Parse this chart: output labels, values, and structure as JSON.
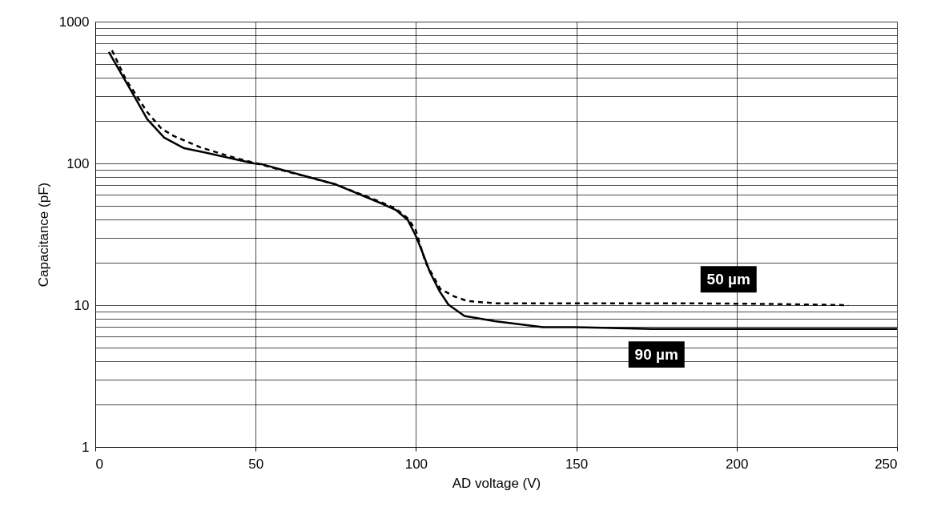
{
  "chart_data": {
    "type": "line",
    "xlabel": "AD voltage (V)",
    "ylabel": "Capacitance (pF)",
    "log": "y",
    "grid": true,
    "legend": false,
    "marker": "none",
    "xlim": [
      0,
      250
    ],
    "xticks": [
      0,
      50,
      100,
      150,
      200,
      250
    ],
    "ylim": [
      1,
      1000
    ],
    "yticks": [
      1,
      {
        "value": 2,
        "label": null
      },
      {
        "value": 3,
        "label": null
      },
      {
        "value": 4,
        "label": null
      },
      {
        "value": 5,
        "label": null
      },
      {
        "value": 6,
        "label": null
      },
      {
        "value": 7,
        "label": null
      },
      {
        "value": 8,
        "label": null
      },
      {
        "value": 9,
        "label": null
      },
      10,
      {
        "value": 20,
        "label": null
      },
      {
        "value": 30,
        "label": null
      },
      {
        "value": 40,
        "label": null
      },
      {
        "value": 50,
        "label": null
      },
      {
        "value": 60,
        "label": null
      },
      {
        "value": 70,
        "label": null
      },
      {
        "value": 80,
        "label": null
      },
      {
        "value": 90,
        "label": null
      },
      100,
      {
        "value": 200,
        "label": null
      },
      {
        "value": 300,
        "label": null
      },
      {
        "value": 400,
        "label": null
      },
      {
        "value": 500,
        "label": null
      },
      {
        "value": 600,
        "label": null
      },
      {
        "value": 700,
        "label": null
      },
      {
        "value": 800,
        "label": null
      },
      {
        "value": 900,
        "label": null
      },
      1000
    ],
    "series": [
      {
        "name": "50 µm",
        "color": "#000000",
        "line_style": "dashed",
        "x": [
          5.2,
          9.5,
          16.2,
          20.7,
          24.5,
          32.7,
          42,
          50.2,
          75,
          89.4,
          93.7,
          97.4,
          99.9,
          101.2,
          103,
          107.6,
          112,
          116,
          125,
          150,
          186,
          210,
          234.8
        ],
        "values": [
          627,
          392,
          230,
          175,
          156,
          130,
          112,
          100,
          71,
          53,
          48,
          41,
          34,
          27,
          20,
          13,
          11.5,
          10.7,
          10.3,
          10.3,
          10.3,
          10.2,
          10.0
        ]
      },
      {
        "name": "90 µm",
        "color": "#000000",
        "line_style": "solid",
        "x": [
          4.2,
          12,
          16.2,
          21.5,
          27.7,
          33.7,
          45.2,
          49.5,
          52,
          75,
          89.4,
          93.7,
          97.4,
          99.9,
          101.9,
          104.4,
          107.4,
          110.1,
          115.1,
          124.6,
          139.6,
          149.6,
          173.6,
          250
        ],
        "values": [
          610,
          302,
          205,
          152,
          128,
          120,
          105,
          100,
          98.6,
          71,
          52,
          47,
          40,
          31,
          24,
          17,
          12.5,
          10.1,
          8.4,
          7.7,
          7.0,
          7.0,
          6.8,
          6.8
        ]
      }
    ]
  }
}
